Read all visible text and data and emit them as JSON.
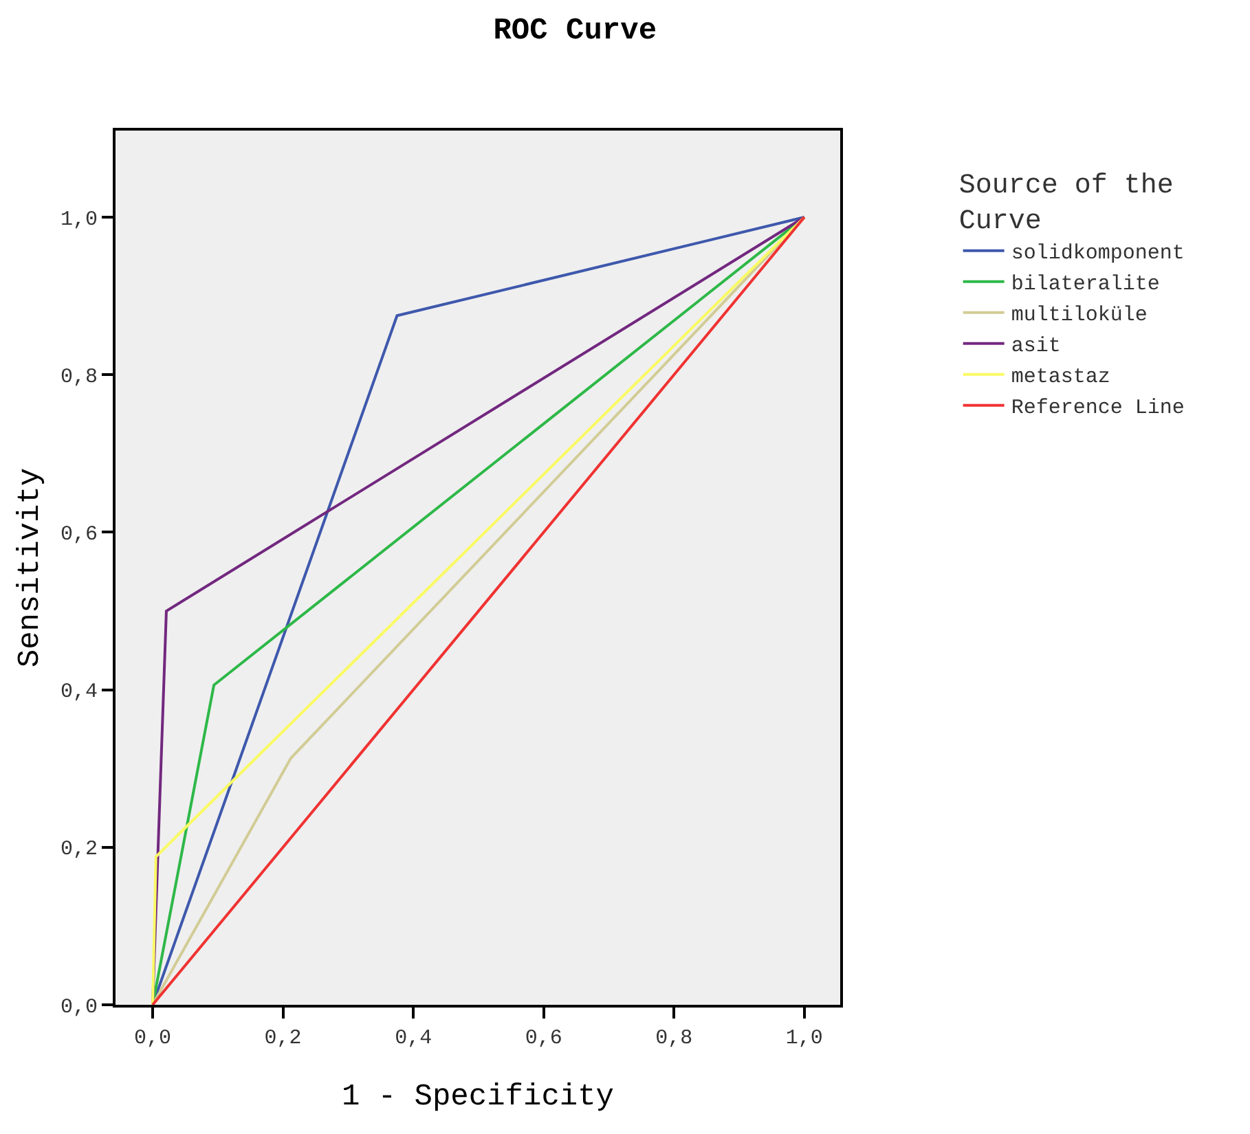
{
  "chart_data": {
    "type": "line",
    "title": "ROC Curve",
    "xlabel": "1 - Specificity",
    "ylabel": "Sensitivity",
    "legend_title": "Source of the Curve",
    "legend": "right",
    "grid": false,
    "marker": "none",
    "line_style": "solid",
    "xlim": [
      -0.057,
      1.055
    ],
    "ylim": [
      0,
      1.11
    ],
    "xticks": [
      {
        "value": 0,
        "label": "0,0"
      },
      {
        "value": 0.2,
        "label": "0,2"
      },
      {
        "value": 0.4,
        "label": "0,4"
      },
      {
        "value": 0.6,
        "label": "0,6"
      },
      {
        "value": 0.8,
        "label": "0,8"
      },
      {
        "value": 1,
        "label": "1,0"
      }
    ],
    "yticks": [
      {
        "value": 0,
        "label": "0,0"
      },
      {
        "value": 0.2,
        "label": "0,2"
      },
      {
        "value": 0.4,
        "label": "0,4"
      },
      {
        "value": 0.6,
        "label": "0,6"
      },
      {
        "value": 0.8,
        "label": "0,8"
      },
      {
        "value": 1,
        "label": "1,0"
      }
    ],
    "series": [
      {
        "name": "solidkomponent",
        "color": "#3e58ac",
        "x": [
          0,
          0.375,
          1
        ],
        "values": [
          0,
          0.875,
          1
        ]
      },
      {
        "name": "bilateralite",
        "color": "#2eb848",
        "x": [
          0,
          0.094,
          1
        ],
        "values": [
          0,
          0.406,
          1
        ]
      },
      {
        "name": "multiloküle",
        "color": "#d2cc96",
        "x": [
          0,
          0.212,
          1
        ],
        "values": [
          0,
          0.313,
          1
        ]
      },
      {
        "name": "asit",
        "color": "#72287f",
        "x": [
          0,
          0.021,
          1
        ],
        "values": [
          0,
          0.5,
          1
        ]
      },
      {
        "name": "metastaz",
        "color": "#fafa64",
        "x": [
          0,
          0.005,
          1
        ],
        "values": [
          0,
          0.188,
          1
        ]
      },
      {
        "name": "Reference Line",
        "color": "#f03232",
        "x": [
          0,
          1
        ],
        "values": [
          0,
          1
        ]
      }
    ]
  }
}
